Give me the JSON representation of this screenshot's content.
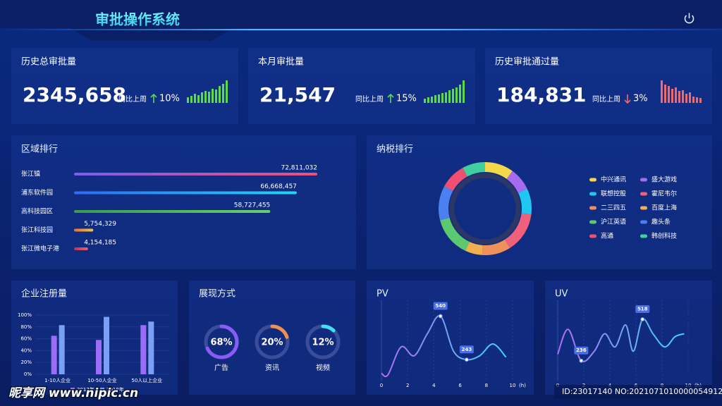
{
  "header": {
    "title": "审批操作系统"
  },
  "kpis": [
    {
      "title": "历史总审批量",
      "value": "2345,658",
      "compare": "同比上周",
      "change": "10%",
      "direction": "up",
      "color": "#5ed94a",
      "spark": [
        8,
        10,
        13,
        11,
        15,
        17,
        16,
        20,
        19,
        24,
        27,
        32
      ]
    },
    {
      "title": "本月审批量",
      "value": "21,547",
      "compare": "同比上周",
      "change": "15%",
      "direction": "up",
      "color": "#5ed94a",
      "spark": [
        6,
        8,
        9,
        11,
        12,
        14,
        15,
        18,
        20,
        22,
        26,
        32
      ]
    },
    {
      "title": "历史审批通过量",
      "value": "184,831",
      "compare": "同比上周",
      "change": "3%",
      "direction": "down",
      "color": "#f06a6a",
      "spark": [
        32,
        26,
        24,
        20,
        22,
        17,
        18,
        13,
        15,
        9,
        8,
        7
      ]
    }
  ],
  "region_ranking": {
    "type": "bar",
    "title": "区域排行",
    "categories": [
      "张江镇",
      "浦东软件园",
      "高科技园区",
      "张江科技园",
      "张江微电子港"
    ],
    "values": [
      72811032,
      66668457,
      58727455,
      5754329,
      4154185
    ],
    "value_labels": [
      "72,811,032",
      "66,668,457",
      "58,727,455",
      "5,754,329",
      "4,154,185"
    ],
    "colors": [
      [
        "#7b5cf0",
        "#f0507a"
      ],
      [
        "#2e6df0",
        "#27d3f5"
      ],
      [
        "#3b9a4c",
        "#6ad06a"
      ],
      [
        "#f07020",
        "#f5c540"
      ],
      [
        "#c03050",
        "#f06070"
      ]
    ]
  },
  "tax_ranking": {
    "type": "pie",
    "title": "纳税排行",
    "categories": [
      "中兴通讯",
      "盛大游戏",
      "联想控股",
      "霍尼韦尔",
      "二三四五",
      "百度上海",
      "沪江英语",
      "趣头条",
      "高通",
      "韩创科技"
    ],
    "values": [
      10,
      8,
      9,
      14,
      10,
      6,
      14,
      12,
      9,
      8
    ],
    "colors": [
      "#f5d849",
      "#a56cf0",
      "#1ec8f0",
      "#f0607a",
      "#f0905a",
      "#f0b050",
      "#5cc870",
      "#4a80f0",
      "#f05070",
      "#40d0a0"
    ]
  },
  "enterprise_chart": {
    "type": "bar",
    "title": "企业注册量",
    "categories": [
      "1-10人企业",
      "10-50人企业",
      "50人以上企业"
    ],
    "series": [
      {
        "name": "2017年",
        "color": "#9b6cf5",
        "values": [
          65,
          58,
          83
        ]
      },
      {
        "name": "2018年",
        "color": "#7aa0f5",
        "values": [
          83,
          97,
          89
        ]
      }
    ],
    "ylim": [
      0,
      100
    ],
    "yticks": [
      {
        "value": 0,
        "label": "0%"
      },
      {
        "value": 20,
        "label": "20%"
      },
      {
        "value": 40,
        "label": "40%"
      },
      {
        "value": 60,
        "label": "60%"
      },
      {
        "value": 80,
        "label": "80%"
      },
      {
        "value": 100,
        "label": "100%"
      }
    ]
  },
  "display_mode": {
    "type": "pie",
    "title": "展现方式",
    "categories": [
      "广告",
      "资讯",
      "视频"
    ],
    "values": [
      68,
      20,
      12
    ],
    "value_labels": [
      "68%",
      "20%",
      "12%"
    ],
    "colors": [
      "#8a5cf5",
      "#f0904a",
      "#40e0f0"
    ]
  },
  "pv_chart": {
    "type": "line",
    "title": "PV",
    "x_label": "(h)",
    "x": [
      0,
      0.5,
      1.5,
      2.5,
      3.5,
      4.5,
      5.5,
      6.5,
      7.5,
      8.5,
      9.5
    ],
    "values": [
      150,
      140,
      330,
      270,
      420,
      540,
      300,
      243,
      270,
      350,
      260
    ],
    "value_labels": [
      null,
      null,
      null,
      null,
      null,
      "540",
      null,
      "243",
      null,
      null,
      null
    ],
    "xlim": [
      0,
      10
    ],
    "xticks": [
      0,
      2,
      4,
      6,
      8,
      10
    ],
    "ylim": [
      100,
      600
    ]
  },
  "uv_chart": {
    "type": "line",
    "title": "UV",
    "x_label": "(h)",
    "x": [
      0,
      0.8,
      1.8,
      2.8,
      3.6,
      4.4,
      5.2,
      5.8,
      6.5,
      7.3,
      8.2,
      9,
      9.7
    ],
    "values": [
      280,
      450,
      236,
      300,
      420,
      330,
      480,
      300,
      518,
      420,
      330,
      400,
      420
    ],
    "value_labels": [
      null,
      null,
      "236",
      null,
      null,
      null,
      null,
      null,
      "518",
      null,
      null,
      null,
      null
    ],
    "xlim": [
      0,
      10
    ],
    "xticks": [
      0,
      2,
      4,
      6,
      8,
      10
    ],
    "ylim": [
      100,
      600
    ]
  },
  "watermark": {
    "site": "昵享网 www.nipic.cn",
    "id": "ID:23017140 NO:20210710100000549125"
  }
}
